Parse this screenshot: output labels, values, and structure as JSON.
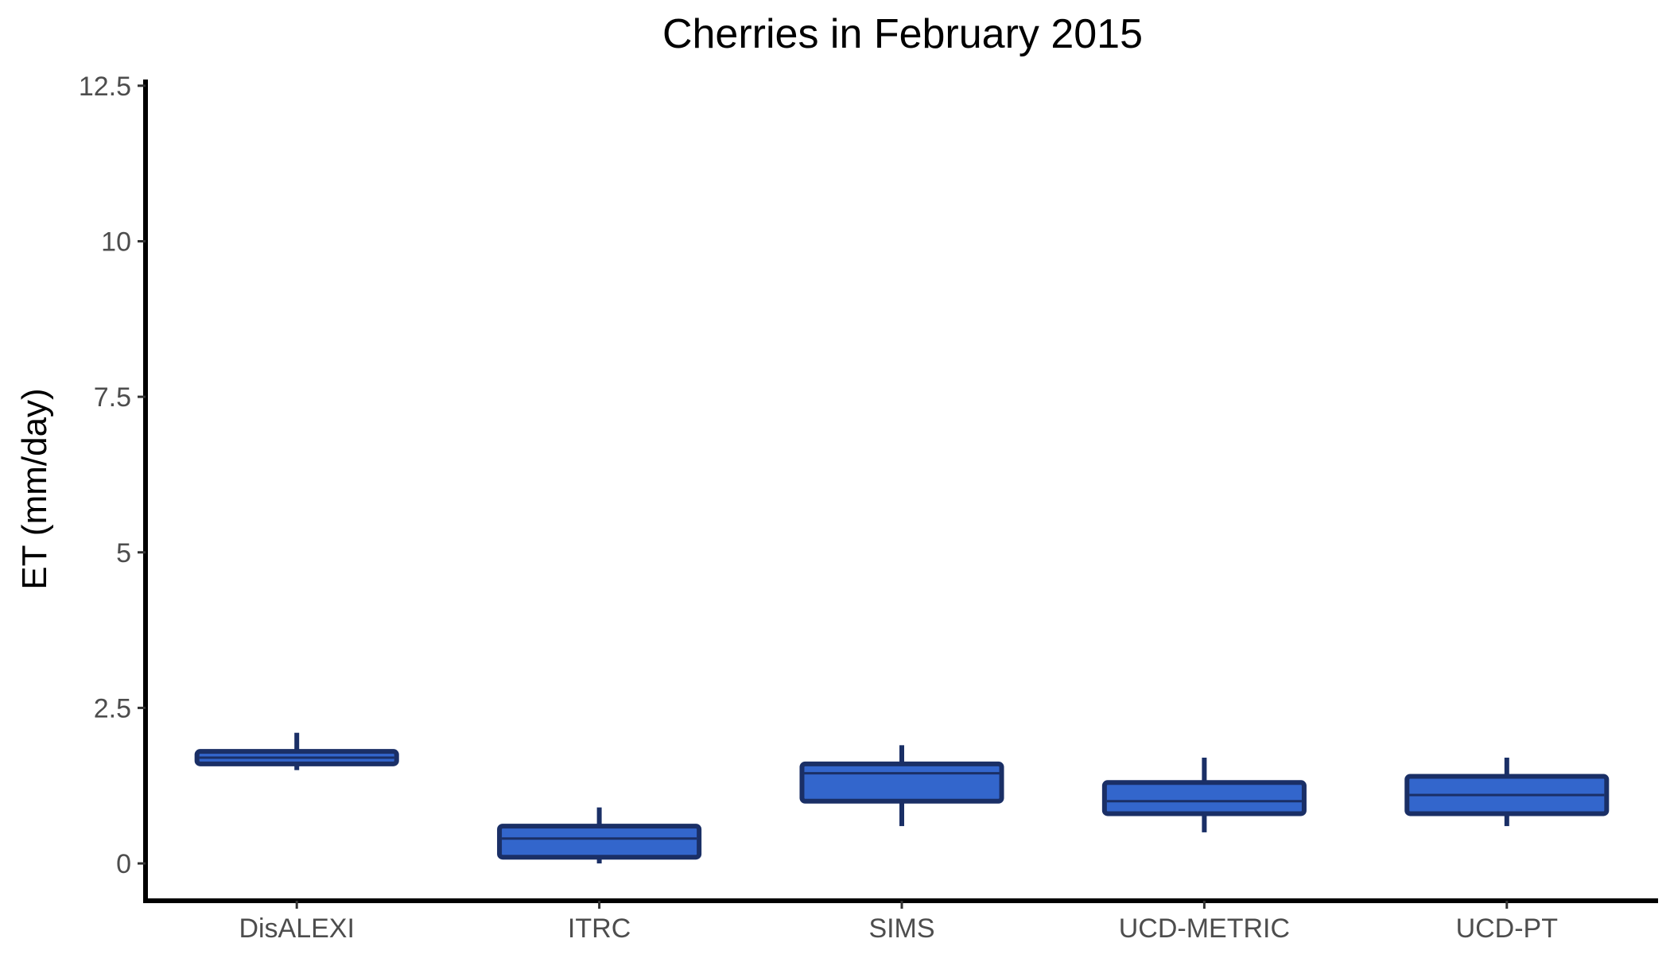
{
  "chart_data": {
    "type": "box",
    "title": "Cherries in February 2015",
    "xlabel": "",
    "ylabel": "ET (mm/day)",
    "ylim": [
      -0.6,
      12.6
    ],
    "yticks": [
      0,
      2.5,
      5,
      7.5,
      10,
      12.5
    ],
    "ytick_labels": [
      "0",
      "2.5",
      "5",
      "7.5",
      "10",
      "12.5"
    ],
    "grid": false,
    "legend": "none",
    "categories": [
      "DisALEXI",
      "ITRC",
      "SIMS",
      "UCD-METRIC",
      "UCD-PT"
    ],
    "series": [
      {
        "boxes": [
          {
            "category": "DisALEXI",
            "whisker_low": 1.5,
            "q1": 1.6,
            "median": 1.7,
            "q3": 1.8,
            "whisker_high": 2.1
          },
          {
            "category": "ITRC",
            "whisker_low": 0.0,
            "q1": 0.1,
            "median": 0.4,
            "q3": 0.6,
            "whisker_high": 0.9
          },
          {
            "category": "SIMS",
            "whisker_low": 0.6,
            "q1": 1.0,
            "median": 1.45,
            "q3": 1.6,
            "whisker_high": 1.9
          },
          {
            "category": "UCD-METRIC",
            "whisker_low": 0.5,
            "q1": 0.8,
            "median": 1.0,
            "q3": 1.3,
            "whisker_high": 1.7
          },
          {
            "category": "UCD-PT",
            "whisker_low": 0.6,
            "q1": 0.8,
            "median": 1.1,
            "q3": 1.4,
            "whisker_high": 1.7
          }
        ]
      }
    ],
    "colors": {
      "box_fill": "#3366cc",
      "box_stroke": "#1a2f66",
      "axis": "#000000",
      "tick_text": "#4d4d4d",
      "title_text": "#000000"
    }
  }
}
